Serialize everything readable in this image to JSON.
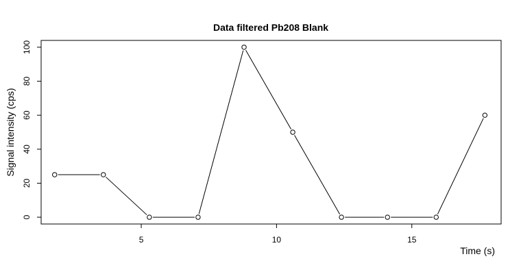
{
  "chart_data": {
    "type": "line",
    "title": "Data filtered Pb208 Blank",
    "xlabel": "Time (s)",
    "ylabel": "Signal intensity (cps)",
    "xlim": [
      1.3,
      18.3
    ],
    "ylim": [
      -4,
      104
    ],
    "x_ticks": [
      5,
      10,
      15
    ],
    "y_ticks": [
      0,
      20,
      40,
      60,
      80,
      100
    ],
    "grid": false,
    "legend": "none",
    "markers": "open-circle",
    "series": [
      {
        "x": [
          1.8,
          3.6,
          5.3,
          7.1,
          8.8,
          10.6,
          12.4,
          14.1,
          15.9,
          17.7
        ],
        "y": [
          25,
          25,
          0,
          0,
          100,
          50,
          0,
          0,
          0,
          60
        ]
      }
    ]
  }
}
